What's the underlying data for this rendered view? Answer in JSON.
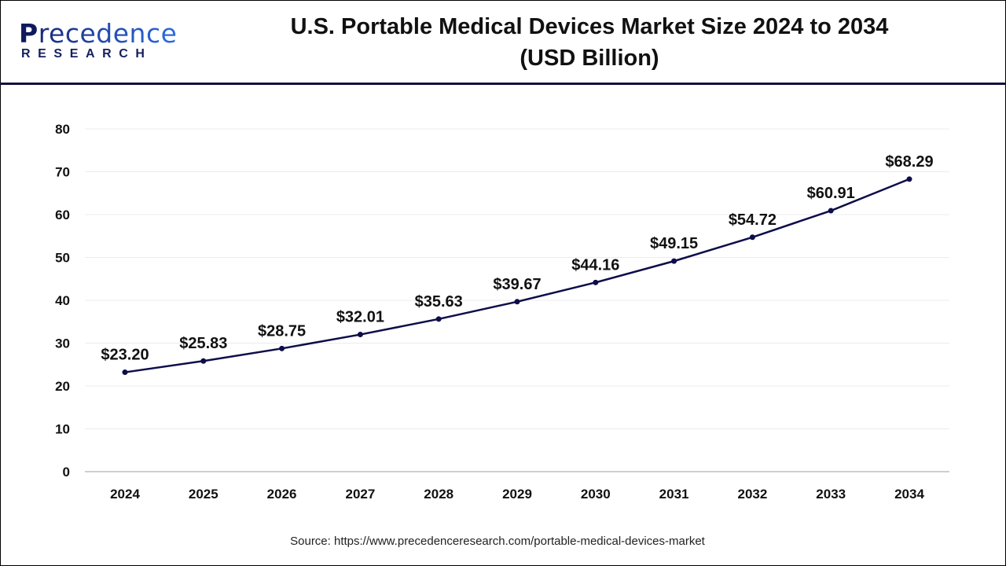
{
  "logo": {
    "line1_initial": "P",
    "line1_rest": "recedence",
    "line2": "RESEARCH"
  },
  "title_line1": "U.S. Portable Medical Devices Market Size 2024 to 2034",
  "title_line2": "(USD Billion)",
  "source": "Source: https://www.precedenceresearch.com/portable-medical-devices-market",
  "chart_data": {
    "type": "line",
    "title": "U.S. Portable Medical Devices Market Size 2024 to 2034 (USD Billion)",
    "x": [
      "2024",
      "2025",
      "2026",
      "2027",
      "2028",
      "2029",
      "2030",
      "2031",
      "2032",
      "2033",
      "2034"
    ],
    "values": [
      23.2,
      25.83,
      28.75,
      32.01,
      35.63,
      39.67,
      44.16,
      49.15,
      54.72,
      60.91,
      68.29
    ],
    "data_labels": [
      "$23.20",
      "$25.83",
      "$28.75",
      "$32.01",
      "$35.63",
      "$39.67",
      "$44.16",
      "$49.15",
      "$54.72",
      "$60.91",
      "$68.29"
    ],
    "yticks": [
      "0",
      "10",
      "20",
      "30",
      "40",
      "50",
      "60",
      "70",
      "80"
    ],
    "ylim": [
      0,
      80
    ],
    "grid": true,
    "line_color": "#0d0d4a"
  }
}
